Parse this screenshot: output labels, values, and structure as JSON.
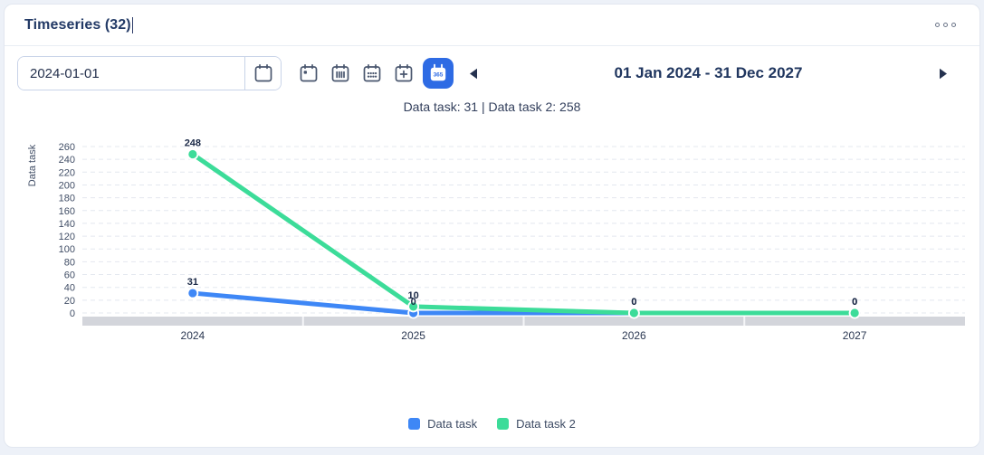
{
  "header": {
    "title": "Timeseries (32)",
    "menu_icon": "ellipsis-horizontal"
  },
  "toolbar": {
    "date_value": "2024-01-01",
    "period_buttons": [
      {
        "id": "day",
        "icon": "calendar-day-icon",
        "selected": false
      },
      {
        "id": "week",
        "icon": "calendar-week-icon",
        "selected": false
      },
      {
        "id": "month",
        "icon": "calendar-month-icon",
        "selected": false
      },
      {
        "id": "add",
        "icon": "calendar-add-icon",
        "selected": false
      },
      {
        "id": "year",
        "icon": "calendar-year-icon",
        "label": "365",
        "selected": true
      }
    ],
    "range_label": "01 Jan 2024 - 31 Dec 2027"
  },
  "summary": {
    "text": "Data task: 31 | Data task 2: 258"
  },
  "chart_data": {
    "type": "line",
    "x": [
      "2024",
      "2025",
      "2026",
      "2027"
    ],
    "series": [
      {
        "name": "Data task",
        "color": "#3e87f6",
        "values": [
          31,
          0,
          0,
          0
        ]
      },
      {
        "name": "Data task 2",
        "color": "#3cdc99",
        "values": [
          248,
          10,
          0,
          0
        ]
      }
    ],
    "title": "",
    "xlabel": "",
    "ylabel": "Data task",
    "ylim": [
      0,
      260
    ],
    "ytick_step": 20,
    "grid": "horizontal-dashed",
    "point_labels": true,
    "legend_position": "bottom"
  },
  "legend": {
    "items": [
      {
        "label": "Data task",
        "color": "#3e87f6"
      },
      {
        "label": "Data task 2",
        "color": "#3cdc99"
      }
    ]
  }
}
